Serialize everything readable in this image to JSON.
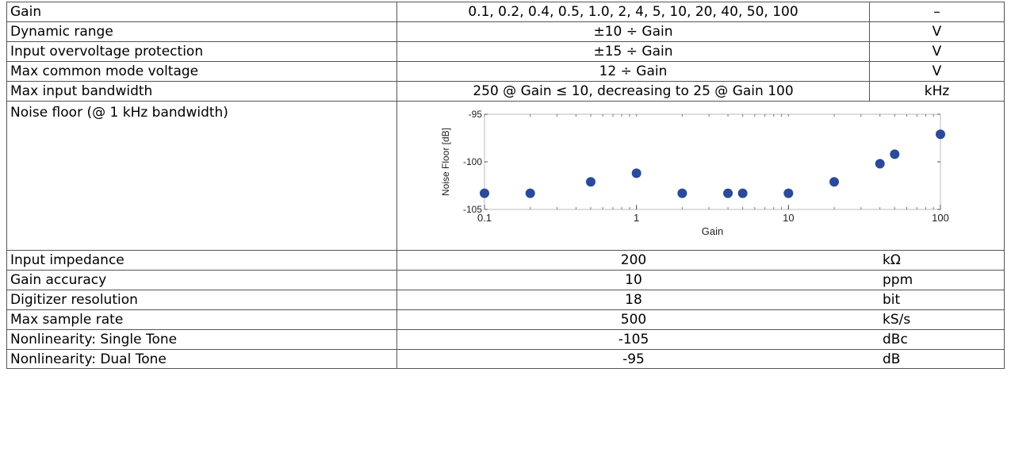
{
  "rows_top": [
    {
      "param": "Gain",
      "value": "0.1, 0.2, 0.4, 0.5, 1.0, 2, 4, 5, 10, 20, 40, 50, 100",
      "unit": "–"
    },
    {
      "param": "Dynamic range",
      "value": "±10 ÷ Gain",
      "unit": "V"
    },
    {
      "param": "Input overvoltage protection",
      "value": "±15 ÷ Gain",
      "unit": "V"
    },
    {
      "param": "Max common mode voltage",
      "value": "12 ÷ Gain",
      "unit": "V"
    },
    {
      "param": "Max input bandwidth",
      "value": "250 @ Gain ≤ 10, decreasing to 25 @ Gain 100",
      "unit": "kHz"
    }
  ],
  "noise_row": {
    "param": "Noise floor (@ 1 kHz bandwidth)"
  },
  "rows_bottom": [
    {
      "param": "Input impedance",
      "value": "200",
      "unit": "kΩ"
    },
    {
      "param": "Gain accuracy",
      "value": "10",
      "unit": "ppm"
    },
    {
      "param": "Digitizer resolution",
      "value": "18",
      "unit": "bit"
    },
    {
      "param": "Max sample rate",
      "value": "500",
      "unit": "kS/s"
    },
    {
      "param": "Nonlinearity: Single Tone",
      "value": "-105",
      "unit": "dBc"
    },
    {
      "param": "Nonlinearity: Dual Tone",
      "value": "-95",
      "unit": "dB"
    }
  ],
  "chart_data": {
    "type": "scatter",
    "title": "",
    "xlabel": "Gain",
    "ylabel": "Noise Floor [dB]",
    "xscale": "log",
    "xlim": [
      0.1,
      100
    ],
    "ylim": [
      -105,
      -95
    ],
    "x_ticks": [
      "0.1",
      "1",
      "10",
      "100"
    ],
    "y_ticks": [
      "-95",
      "-100",
      "-105"
    ],
    "grid": "dotted",
    "marker_color": "#2a4a9a",
    "x": [
      0.1,
      0.2,
      0.5,
      1.0,
      2,
      4,
      5,
      10,
      20,
      40,
      50,
      100
    ],
    "y": [
      -103.3,
      -103.3,
      -102.1,
      -101.2,
      -103.3,
      -103.3,
      -103.3,
      -103.3,
      -102.1,
      -100.2,
      -99.2,
      -97.1
    ]
  }
}
